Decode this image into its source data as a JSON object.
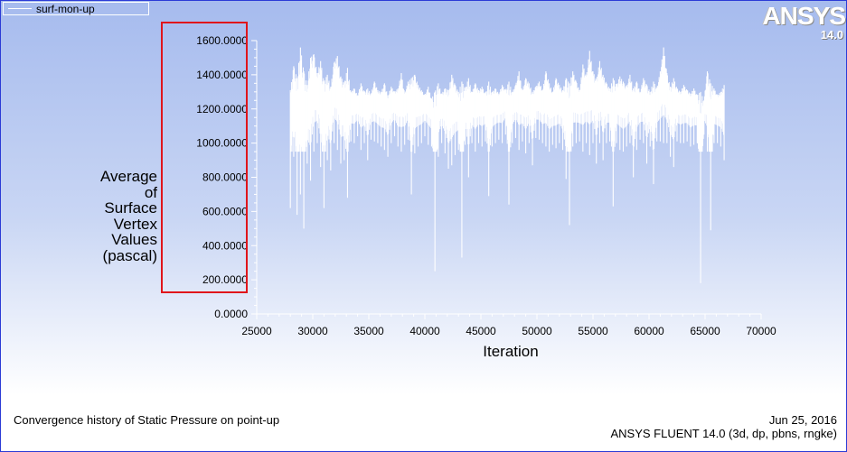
{
  "legend": {
    "label": "surf-mon-up"
  },
  "logo": {
    "text": "ANSYS",
    "version": "14.0"
  },
  "footer": {
    "title": "Convergence history of Static Pressure on point-up",
    "date": "Jun 25, 2016",
    "solver": "ANSYS FLUENT 14.0 (3d, dp, pbns, rngke)"
  },
  "colors": {
    "background_top": "#a6bbee",
    "series": "#ffffff",
    "highlight": "#e0151b",
    "frame": "#2b3bd6"
  },
  "chart_data": {
    "type": "line",
    "title": "",
    "xlabel": "Iteration",
    "ylabel_lines": [
      "Average",
      "of",
      "Surface",
      "Vertex",
      "Values",
      "(pascal)"
    ],
    "xlim": [
      25000,
      70000
    ],
    "ylim": [
      0,
      1600
    ],
    "x_ticks": [
      "25000",
      "30000",
      "35000",
      "40000",
      "45000",
      "50000",
      "55000",
      "60000",
      "65000",
      "70000"
    ],
    "y_ticks": [
      "0.0000",
      "200.0000",
      "400.0000",
      "600.0000",
      "800.0000",
      "1000.0000",
      "1200.0000",
      "1400.0000",
      "1600.0000"
    ],
    "grid": false,
    "legend_position": "top-left",
    "series": [
      {
        "name": "surf-mon-up",
        "x": [
          28000,
          28300,
          28600,
          28900,
          29200,
          29500,
          29800,
          30100,
          30400,
          30700,
          31000,
          31300,
          31600,
          31900,
          32200,
          32500,
          32800,
          33100,
          33400,
          33700,
          34000,
          34300,
          34600,
          34900,
          35200,
          35500,
          35800,
          36100,
          36400,
          36700,
          37000,
          37300,
          37600,
          37900,
          38200,
          38500,
          38800,
          39100,
          39400,
          39700,
          40000,
          40300,
          40600,
          40900,
          41200,
          41500,
          41800,
          42100,
          42400,
          42700,
          43000,
          43300,
          43600,
          43900,
          44200,
          44500,
          44800,
          45100,
          45400,
          45700,
          46000,
          46300,
          46600,
          46900,
          47200,
          47500,
          47800,
          48100,
          48400,
          48700,
          49000,
          49300,
          49600,
          49900,
          50200,
          50500,
          50800,
          51100,
          51400,
          51700,
          52000,
          52300,
          52600,
          52900,
          53200,
          53500,
          53800,
          54100,
          54400,
          54700,
          55000,
          55300,
          55600,
          55900,
          56200,
          56500,
          56800,
          57100,
          57400,
          57700,
          58000,
          58300,
          58600,
          58900,
          59200,
          59500,
          59800,
          60100,
          60400,
          60700,
          61000,
          61300,
          61600,
          61900,
          62200,
          62500,
          62800,
          63100,
          63400,
          63700,
          64000,
          64300,
          64600,
          64900,
          65200,
          65500,
          65800,
          66100,
          66400,
          66700
        ],
        "high": [
          1310,
          1450,
          1380,
          1560,
          1420,
          1340,
          1500,
          1520,
          1410,
          1480,
          1360,
          1400,
          1330,
          1470,
          1510,
          1390,
          1350,
          1440,
          1300,
          1320,
          1280,
          1350,
          1300,
          1320,
          1290,
          1360,
          1310,
          1300,
          1350,
          1280,
          1330,
          1300,
          1320,
          1410,
          1290,
          1360,
          1380,
          1400,
          1340,
          1310,
          1280,
          1330,
          1260,
          1300,
          1350,
          1290,
          1320,
          1310,
          1400,
          1340,
          1300,
          1360,
          1320,
          1380,
          1300,
          1350,
          1310,
          1330,
          1290,
          1360,
          1300,
          1320,
          1290,
          1340,
          1310,
          1360,
          1300,
          1340,
          1420,
          1310,
          1380,
          1350,
          1300,
          1330,
          1360,
          1310,
          1420,
          1350,
          1300,
          1380,
          1340,
          1310,
          1380,
          1350,
          1420,
          1360,
          1310,
          1460,
          1390,
          1540,
          1420,
          1370,
          1480,
          1400,
          1350,
          1320,
          1380,
          1340,
          1390,
          1360,
          1330,
          1400,
          1320,
          1360,
          1300,
          1380,
          1340,
          1300,
          1360,
          1320,
          1420,
          1560,
          1410,
          1330,
          1380,
          1320,
          1300,
          1340,
          1310,
          1290,
          1320,
          1280,
          1300,
          1250,
          1420,
          1350,
          1320,
          1280,
          1300,
          1340
        ],
        "low": [
          620,
          920,
          580,
          700,
          500,
          880,
          780,
          950,
          1000,
          860,
          620,
          900,
          840,
          1000,
          960,
          880,
          900,
          680,
          1010,
          1000,
          1040,
          960,
          1000,
          900,
          1020,
          1010,
          1000,
          980,
          960,
          920,
          1000,
          1040,
          980,
          950,
          990,
          1020,
          700,
          940,
          980,
          1000,
          1040,
          990,
          980,
          250,
          920,
          1000,
          940,
          850,
          870,
          930,
          960,
          330,
          990,
          800,
          1000,
          950,
          1000,
          980,
          1010,
          690,
          980,
          1000,
          1020,
          1000,
          1050,
          640,
          1000,
          1030,
          960,
          1010,
          940,
          1000,
          870,
          1030,
          1020,
          1000,
          980,
          950,
          990,
          970,
          1000,
          960,
          790,
          520,
          980,
          1000,
          1010,
          950,
          1000,
          930,
          1000,
          880,
          1000,
          900,
          1000,
          1010,
          630,
          1000,
          960,
          950,
          980,
          1000,
          800,
          960,
          1020,
          1000,
          880,
          980,
          760,
          1010,
          1010,
          1000,
          1000,
          920,
          860,
          1010,
          1000,
          1000,
          1010,
          980,
          990,
          1000,
          180,
          1050,
          950,
          490,
          1000,
          1000,
          980,
          900
        ]
      }
    ]
  }
}
